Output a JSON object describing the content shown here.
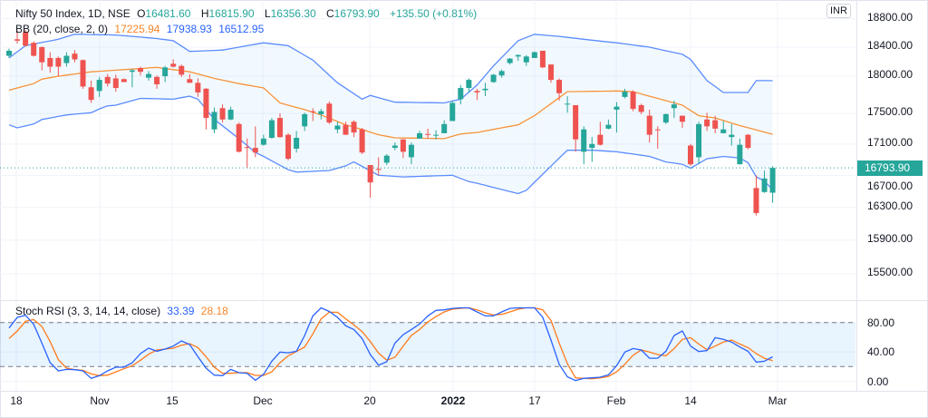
{
  "header": {
    "symbol": "Nifty 50 Index, 1D, NSE",
    "o_label": "O",
    "o": "16481.60",
    "h_label": "H",
    "h": "16815.90",
    "l_label": "L",
    "l": "16356.30",
    "c_label": "C",
    "c": "16793.90",
    "change": "+135.50 (+0.81%)"
  },
  "bb_legend": {
    "name": "BB (20, close, 2, 0)",
    "basis": "17225.94",
    "upper": "17938.93",
    "lower": "16512.95"
  },
  "stoch_legend": {
    "name": "Stoch RSI (3, 3, 14, 14, close)",
    "k": "33.39",
    "d": "28.18"
  },
  "currency_button": "INR",
  "last_price": "16793.90",
  "price_axis": [
    "18800.00",
    "18400.00",
    "18000.00",
    "17500.00",
    "17100.00",
    "16700.00",
    "16300.00",
    "15900.00",
    "15500.00"
  ],
  "stoch_axis": [
    "80.00",
    "40.00",
    "0.00"
  ],
  "time_axis": [
    "18",
    "Nov",
    "15",
    "Dec",
    "20",
    "2022",
    "17",
    "Feb",
    "14",
    "Mar"
  ],
  "colors": {
    "up": "#26a69a",
    "down": "#ef5350",
    "bb_band": "#5b8cff",
    "bb_basis": "#f7933a",
    "k": "#2962ff",
    "d": "#ff7a1a"
  },
  "chart_data": {
    "type": "candlestick",
    "price_levels": [
      18800,
      18400,
      18000,
      17500,
      17100,
      16700,
      16300,
      15900,
      15500
    ],
    "candles_ohlc": [
      [
        18280,
        18380,
        18250,
        18350
      ],
      [
        18510,
        18630,
        18450,
        18490
      ],
      [
        18610,
        18640,
        18410,
        18420
      ],
      [
        18460,
        18480,
        18270,
        18280
      ],
      [
        18400,
        18410,
        18080,
        18190
      ],
      [
        18250,
        18330,
        18050,
        18130
      ],
      [
        18250,
        18270,
        18000,
        18130
      ],
      [
        18180,
        18330,
        18130,
        18280
      ],
      [
        18310,
        18360,
        18190,
        18230
      ],
      [
        18220,
        18230,
        17830,
        17860
      ],
      [
        17850,
        17940,
        17640,
        17680
      ],
      [
        17800,
        17990,
        17720,
        17950
      ],
      [
        17990,
        18030,
        17860,
        17900
      ],
      [
        17970,
        18020,
        17790,
        17840
      ],
      [
        17960,
        17970,
        17920,
        17920
      ],
      [
        18060,
        18100,
        17850,
        18080
      ],
      [
        18110,
        18130,
        18010,
        18060
      ],
      [
        17980,
        18070,
        17940,
        18030
      ],
      [
        17990,
        18010,
        17830,
        17890
      ],
      [
        18000,
        18140,
        17920,
        18120
      ],
      [
        18170,
        18230,
        18120,
        18130
      ],
      [
        18140,
        18160,
        17990,
        18020
      ],
      [
        17960,
        18030,
        17910,
        17910
      ],
      [
        17910,
        17970,
        17720,
        17780
      ],
      [
        17830,
        17840,
        17290,
        17440
      ],
      [
        17290,
        17580,
        17240,
        17520
      ],
      [
        17570,
        17620,
        17380,
        17420
      ],
      [
        17420,
        17590,
        17410,
        17550
      ],
      [
        17360,
        17380,
        16990,
        17000
      ],
      [
        17060,
        17170,
        16790,
        17050
      ],
      [
        17050,
        17330,
        16930,
        16990
      ],
      [
        17090,
        17220,
        17080,
        17170
      ],
      [
        17180,
        17440,
        17170,
        17410
      ],
      [
        17440,
        17500,
        17180,
        17190
      ],
      [
        17220,
        17240,
        16890,
        16910
      ],
      [
        17040,
        17270,
        16990,
        17180
      ],
      [
        17330,
        17510,
        17270,
        17490
      ],
      [
        17530,
        17570,
        17400,
        17520
      ],
      [
        17490,
        17560,
        17420,
        17530
      ],
      [
        17630,
        17660,
        17360,
        17380
      ],
      [
        17290,
        17390,
        17240,
        17340
      ],
      [
        17350,
        17390,
        17220,
        17220
      ],
      [
        17390,
        17410,
        17190,
        17250
      ],
      [
        17290,
        17310,
        16970,
        16990
      ],
      [
        16830,
        16830,
        16420,
        16610
      ],
      [
        16780,
        16930,
        16700,
        16770
      ],
      [
        16860,
        16970,
        16830,
        16950
      ],
      [
        17050,
        17120,
        17020,
        17080
      ],
      [
        17160,
        17160,
        16920,
        17000
      ],
      [
        16930,
        17120,
        16840,
        17090
      ],
      [
        17170,
        17270,
        17170,
        17240
      ],
      [
        17230,
        17300,
        17170,
        17220
      ],
      [
        17210,
        17280,
        17160,
        17220
      ],
      [
        17240,
        17410,
        17240,
        17360
      ],
      [
        17400,
        17670,
        17400,
        17640
      ],
      [
        17690,
        17880,
        17620,
        17840
      ],
      [
        17840,
        17970,
        17780,
        17950
      ],
      [
        17800,
        17830,
        17680,
        17780
      ],
      [
        17810,
        17910,
        17730,
        17830
      ],
      [
        17920,
        18030,
        17910,
        18020
      ],
      [
        18010,
        18090,
        17980,
        18070
      ],
      [
        18180,
        18250,
        18160,
        18240
      ],
      [
        18270,
        18300,
        18210,
        18290
      ],
      [
        18190,
        18290,
        18140,
        18270
      ],
      [
        18250,
        18340,
        18250,
        18330
      ],
      [
        18350,
        18350,
        18110,
        18120
      ],
      [
        18160,
        18160,
        17910,
        17950
      ],
      [
        17950,
        17970,
        17670,
        17770
      ],
      [
        17620,
        17730,
        17510,
        17630
      ],
      [
        17610,
        17610,
        17000,
        17160
      ],
      [
        17000,
        17330,
        16840,
        17290
      ],
      [
        17050,
        17190,
        16870,
        17100
      ],
      [
        17220,
        17390,
        17080,
        17090
      ],
      [
        17300,
        17420,
        17290,
        17350
      ],
      [
        17550,
        17650,
        17250,
        17590
      ],
      [
        17720,
        17830,
        17700,
        17790
      ],
      [
        17790,
        17810,
        17530,
        17560
      ],
      [
        17610,
        17630,
        17490,
        17520
      ],
      [
        17470,
        17550,
        17120,
        17220
      ],
      [
        17290,
        17330,
        17040,
        17280
      ],
      [
        17380,
        17500,
        17360,
        17490
      ],
      [
        17570,
        17670,
        17440,
        17620
      ],
      [
        17470,
        17470,
        17310,
        17390
      ],
      [
        17080,
        17100,
        16820,
        16840
      ],
      [
        16930,
        17390,
        16840,
        17360
      ],
      [
        17420,
        17510,
        17270,
        17330
      ],
      [
        17410,
        17470,
        17240,
        17300
      ],
      [
        17240,
        17400,
        17240,
        17290
      ],
      [
        17190,
        17360,
        17080,
        17220
      ],
      [
        16840,
        17170,
        16840,
        17090
      ],
      [
        17220,
        17230,
        17030,
        17050
      ],
      [
        16540,
        16700,
        16200,
        16230
      ],
      [
        16490,
        16760,
        16480,
        16660
      ],
      [
        16481.6,
        16815.9,
        16356.3,
        16793.9
      ]
    ],
    "bb_upper_points": [
      [
        0,
        18250
      ],
      [
        2,
        18420
      ],
      [
        6,
        18510
      ],
      [
        8,
        18580
      ],
      [
        13,
        18570
      ],
      [
        18,
        18520
      ],
      [
        20,
        18490
      ],
      [
        22,
        18340
      ],
      [
        26,
        18360
      ],
      [
        31,
        18460
      ],
      [
        34,
        18420
      ],
      [
        37,
        18220
      ],
      [
        40,
        17910
      ],
      [
        43,
        17690
      ],
      [
        44,
        17740
      ],
      [
        47,
        17650
      ],
      [
        53,
        17640
      ],
      [
        55,
        17690
      ],
      [
        57,
        17880
      ],
      [
        59,
        18140
      ],
      [
        62,
        18490
      ],
      [
        64,
        18580
      ],
      [
        67,
        18550
      ],
      [
        70,
        18510
      ],
      [
        74,
        18460
      ],
      [
        78,
        18400
      ],
      [
        82,
        18300
      ],
      [
        83,
        18230
      ],
      [
        85,
        17940
      ],
      [
        87,
        17780
      ],
      [
        90,
        17780
      ],
      [
        91,
        17940
      ],
      [
        93,
        17939
      ]
    ],
    "bb_basis_points": [
      [
        0,
        17810
      ],
      [
        3,
        17900
      ],
      [
        4,
        17960
      ],
      [
        6,
        18000
      ],
      [
        10,
        18060
      ],
      [
        14,
        18090
      ],
      [
        18,
        18120
      ],
      [
        20,
        18090
      ],
      [
        22,
        18060
      ],
      [
        25,
        17970
      ],
      [
        28,
        17900
      ],
      [
        31,
        17840
      ],
      [
        33,
        17640
      ],
      [
        36,
        17550
      ],
      [
        38,
        17480
      ],
      [
        41,
        17350
      ],
      [
        43,
        17290
      ],
      [
        45,
        17220
      ],
      [
        47,
        17180
      ],
      [
        53,
        17170
      ],
      [
        55,
        17230
      ],
      [
        57,
        17250
      ],
      [
        59,
        17290
      ],
      [
        62,
        17350
      ],
      [
        64,
        17470
      ],
      [
        66,
        17630
      ],
      [
        68,
        17790
      ],
      [
        74,
        17800
      ],
      [
        76,
        17790
      ],
      [
        80,
        17670
      ],
      [
        82,
        17610
      ],
      [
        84,
        17470
      ],
      [
        86,
        17440
      ],
      [
        89,
        17340
      ],
      [
        93,
        17226
      ]
    ],
    "bb_lower_points": [
      [
        0,
        17350
      ],
      [
        1,
        17310
      ],
      [
        3,
        17360
      ],
      [
        4,
        17420
      ],
      [
        7,
        17480
      ],
      [
        10,
        17510
      ],
      [
        11,
        17560
      ],
      [
        12,
        17600
      ],
      [
        13,
        17610
      ],
      [
        15,
        17670
      ],
      [
        16,
        17700
      ],
      [
        20,
        17690
      ],
      [
        22,
        17730
      ],
      [
        23,
        17690
      ],
      [
        25,
        17420
      ],
      [
        28,
        17170
      ],
      [
        30,
        16990
      ],
      [
        31,
        16940
      ],
      [
        34,
        16770
      ],
      [
        35,
        16740
      ],
      [
        37,
        16750
      ],
      [
        39,
        16760
      ],
      [
        41,
        16820
      ],
      [
        42,
        16870
      ],
      [
        45,
        16700
      ],
      [
        48,
        16680
      ],
      [
        54,
        16700
      ],
      [
        56,
        16620
      ],
      [
        57,
        16600
      ],
      [
        62,
        16470
      ],
      [
        63,
        16510
      ],
      [
        68,
        17020
      ],
      [
        71,
        17020
      ],
      [
        74,
        17000
      ],
      [
        78,
        16940
      ],
      [
        80,
        16870
      ],
      [
        82,
        16840
      ],
      [
        83,
        16790
      ],
      [
        85,
        16910
      ],
      [
        87,
        16940
      ],
      [
        89,
        16920
      ],
      [
        90,
        16860
      ],
      [
        91,
        16680
      ],
      [
        92,
        16630
      ],
      [
        93,
        16513
      ]
    ],
    "stoch_levels": {
      "upper": 80,
      "lower": 20
    },
    "stoch_k": [
      72.6,
      87,
      89.9,
      77.5,
      52,
      25.3,
      14.2,
      16.2,
      15.8,
      14.2,
      3.9,
      7.6,
      14.2,
      19.1,
      19.1,
      25.3,
      37.6,
      45,
      40.9,
      43.8,
      47.9,
      54.9,
      50,
      33.5,
      17.9,
      8.4,
      7.6,
      16.2,
      11.7,
      10.9,
      1.4,
      9.6,
      27.3,
      39.7,
      38.8,
      40.9,
      62.3,
      89,
      100,
      95,
      87,
      75.5,
      70.5,
      58.2,
      36.4,
      22,
      26.5,
      52,
      63.5,
      70.5,
      77.9,
      89,
      96.5,
      97.3,
      99.3,
      100,
      100,
      94.4,
      89,
      89,
      94.4,
      99.3,
      100,
      100,
      100,
      87,
      56.1,
      23.2,
      6,
      1,
      3.9,
      4.7,
      5.5,
      8.8,
      21.2,
      39.7,
      44.6,
      42.6,
      31.4,
      31.4,
      40.9,
      62.3,
      68.5,
      47.9,
      40.5,
      41.7,
      59.4,
      57,
      53.3,
      46.7,
      40.9,
      26.1,
      27.3,
      33.39
    ],
    "stoch_d": [
      58.2,
      68.5,
      81.6,
      84.1,
      74.7,
      54.1,
      29.4,
      17.9,
      15.8,
      15,
      10,
      7.6,
      8.4,
      12.9,
      17,
      21.2,
      28.6,
      36.8,
      42.6,
      43.8,
      45,
      49.1,
      51.2,
      45.8,
      33.5,
      19.1,
      10.9,
      10.9,
      11.7,
      11.7,
      8,
      8,
      12.9,
      25.3,
      34.7,
      40.5,
      46.7,
      64.4,
      84.9,
      94,
      94,
      84.9,
      76.7,
      67.7,
      54.1,
      38.4,
      28.6,
      32.7,
      47.9,
      62.3,
      70.5,
      80.8,
      88.2,
      94.4,
      98.1,
      99.3,
      100,
      97.3,
      93.2,
      90.3,
      91.1,
      94.4,
      98.1,
      100,
      100,
      97.3,
      82.9,
      52,
      24,
      4.7,
      3.9,
      3.5,
      4.7,
      6.7,
      12.9,
      23.2,
      35.6,
      42.6,
      39.7,
      36.4,
      34.7,
      44.6,
      57,
      59.4,
      50.8,
      43,
      47.9,
      53.3,
      56.1,
      50.8,
      45.8,
      37.6,
      31.4,
      28.18
    ]
  }
}
